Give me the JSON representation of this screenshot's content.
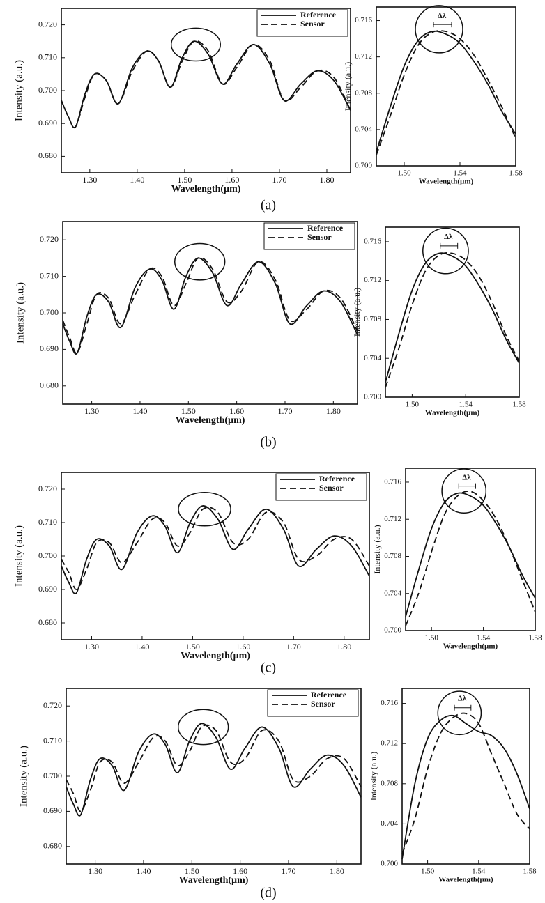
{
  "panel_labels": [
    "(a)",
    "(b)",
    "(c)",
    "(d)"
  ],
  "chart_data": [
    {
      "type": "line",
      "x_label": "Wavelength(µm)",
      "y_label": "Intensity (a.u.)",
      "legend": "upper right",
      "x": [
        1.24,
        1.255,
        1.27,
        1.29,
        1.31,
        1.335,
        1.36,
        1.39,
        1.42,
        1.445,
        1.47,
        1.495,
        1.52,
        1.55,
        1.58,
        1.61,
        1.645,
        1.68,
        1.71,
        1.745,
        1.78,
        1.815,
        1.85
      ],
      "series": [
        {
          "name": "Reference",
          "color": "#111111",
          "dash": false,
          "values": [
            0.697,
            0.692,
            0.689,
            0.699,
            0.705,
            0.703,
            0.696,
            0.707,
            0.712,
            0.709,
            0.701,
            0.71,
            0.715,
            0.711,
            0.702,
            0.708,
            0.714,
            0.708,
            0.697,
            0.702,
            0.706,
            0.703,
            0.694
          ]
        },
        {
          "name": "Sensor",
          "color": "#111111",
          "dash": true,
          "values": [
            0.697,
            0.692,
            0.689,
            0.698,
            0.705,
            0.703,
            0.696,
            0.706,
            0.712,
            0.709,
            0.701,
            0.709,
            0.715,
            0.712,
            0.702,
            0.707,
            0.714,
            0.709,
            0.697,
            0.701,
            0.706,
            0.704,
            0.694
          ]
        }
      ],
      "xlim": [
        1.24,
        1.85
      ],
      "ylim": [
        0.675,
        0.725
      ],
      "xticks": [
        {
          "value": 1.3,
          "label": "1.30"
        },
        {
          "value": 1.4,
          "label": "1.40"
        },
        {
          "value": 1.5,
          "label": "1.50"
        },
        {
          "value": 1.6,
          "label": "1.60"
        },
        {
          "value": 1.7,
          "label": "1.70"
        },
        {
          "value": 1.8,
          "label": "1.80"
        }
      ],
      "yticks": [
        {
          "value": 0.68,
          "label": "0.680"
        },
        {
          "value": 0.69,
          "label": "0.690"
        },
        {
          "value": 0.7,
          "label": "0.700"
        },
        {
          "value": 0.71,
          "label": "0.710"
        },
        {
          "value": 0.72,
          "label": "0.720"
        }
      ]
    },
    {
      "type": "line",
      "x_label": "Wavelength(µm)",
      "y_label": "Intensity (a.u.)",
      "annotation": "Δλ",
      "x": [
        1.48,
        1.49,
        1.5,
        1.51,
        1.52,
        1.53,
        1.54,
        1.55,
        1.56,
        1.57,
        1.58
      ],
      "series": [
        {
          "color": "#111111",
          "dash": false,
          "values": [
            0.7015,
            0.7065,
            0.711,
            0.7138,
            0.7148,
            0.7145,
            0.7135,
            0.7115,
            0.709,
            0.706,
            0.7035
          ]
        },
        {
          "color": "#111111",
          "dash": true,
          "values": [
            0.7012,
            0.7055,
            0.71,
            0.7133,
            0.7147,
            0.7148,
            0.714,
            0.7122,
            0.7095,
            0.7065,
            0.703
          ]
        }
      ],
      "xlim": [
        1.48,
        1.58
      ],
      "ylim": [
        0.7,
        0.7175
      ],
      "xticks": [
        {
          "value": 1.5,
          "label": "1.50"
        },
        1.54,
        1.58
      ],
      "yticks": [
        {
          "value": 0.7,
          "label": "0.700"
        },
        0.704,
        0.708,
        0.712,
        0.716
      ]
    },
    {
      "type": "line",
      "x_label": "Wavelength(µm)",
      "y_label": "Intensity (a.u.)",
      "legend": "upper right",
      "x": [
        1.24,
        1.255,
        1.27,
        1.29,
        1.31,
        1.335,
        1.36,
        1.39,
        1.42,
        1.445,
        1.47,
        1.495,
        1.52,
        1.55,
        1.58,
        1.61,
        1.645,
        1.68,
        1.71,
        1.745,
        1.78,
        1.815,
        1.85
      ],
      "series": [
        {
          "name": "Reference",
          "color": "#111111",
          "dash": false,
          "values": [
            0.697,
            0.692,
            0.689,
            0.699,
            0.705,
            0.703,
            0.696,
            0.707,
            0.712,
            0.709,
            0.701,
            0.71,
            0.715,
            0.711,
            0.702,
            0.708,
            0.714,
            0.708,
            0.697,
            0.702,
            0.706,
            0.703,
            0.694
          ]
        },
        {
          "name": "Sensor",
          "color": "#111111",
          "dash": true,
          "values": [
            0.698,
            0.693,
            0.689,
            0.697,
            0.705,
            0.704,
            0.697,
            0.705,
            0.712,
            0.71,
            0.702,
            0.708,
            0.715,
            0.712,
            0.703,
            0.706,
            0.714,
            0.709,
            0.698,
            0.701,
            0.706,
            0.704,
            0.695
          ]
        }
      ],
      "xlim": [
        1.24,
        1.85
      ],
      "ylim": [
        0.675,
        0.725
      ],
      "xticks": [
        {
          "value": 1.3,
          "label": "1.30"
        },
        {
          "value": 1.4,
          "label": "1.40"
        },
        {
          "value": 1.5,
          "label": "1.50"
        },
        {
          "value": 1.6,
          "label": "1.60"
        },
        {
          "value": 1.7,
          "label": "1.70"
        },
        {
          "value": 1.8,
          "label": "1.80"
        }
      ],
      "yticks": [
        {
          "value": 0.68,
          "label": "0.680"
        },
        {
          "value": 0.69,
          "label": "0.690"
        },
        {
          "value": 0.7,
          "label": "0.700"
        },
        {
          "value": 0.71,
          "label": "0.710"
        },
        {
          "value": 0.72,
          "label": "0.720"
        }
      ]
    },
    {
      "type": "line",
      "x_label": "Wavelength(µm)",
      "y_label": "Intensity (a.u.)",
      "annotation": "Δλ",
      "x": [
        1.48,
        1.49,
        1.5,
        1.51,
        1.52,
        1.53,
        1.54,
        1.55,
        1.56,
        1.57,
        1.58
      ],
      "series": [
        {
          "color": "#111111",
          "dash": false,
          "values": [
            0.7015,
            0.7065,
            0.711,
            0.7138,
            0.7148,
            0.7145,
            0.7135,
            0.7115,
            0.709,
            0.706,
            0.7035
          ]
        },
        {
          "color": "#111111",
          "dash": true,
          "values": [
            0.701,
            0.705,
            0.7095,
            0.713,
            0.7146,
            0.7148,
            0.7141,
            0.7124,
            0.7097,
            0.7064,
            0.7037
          ]
        }
      ],
      "xlim": [
        1.48,
        1.58
      ],
      "ylim": [
        0.7,
        0.7175
      ],
      "xticks": [
        {
          "value": 1.5,
          "label": "1.50"
        },
        1.54,
        1.58
      ],
      "yticks": [
        {
          "value": 0.7,
          "label": "0.700"
        },
        0.704,
        0.708,
        0.712,
        0.716
      ]
    },
    {
      "type": "line",
      "x_label": "Wavelength(µm)",
      "y_label": "Intensity (a.u.)",
      "legend": "upper right",
      "x": [
        1.24,
        1.255,
        1.27,
        1.29,
        1.31,
        1.335,
        1.36,
        1.39,
        1.42,
        1.445,
        1.47,
        1.495,
        1.52,
        1.55,
        1.58,
        1.61,
        1.645,
        1.68,
        1.71,
        1.745,
        1.78,
        1.815,
        1.85
      ],
      "series": [
        {
          "name": "Reference",
          "color": "#111111",
          "dash": false,
          "values": [
            0.697,
            0.692,
            0.689,
            0.699,
            0.705,
            0.703,
            0.696,
            0.707,
            0.712,
            0.709,
            0.701,
            0.71,
            0.715,
            0.711,
            0.702,
            0.708,
            0.714,
            0.708,
            0.697,
            0.702,
            0.706,
            0.703,
            0.694
          ]
        },
        {
          "name": "Sensor",
          "color": "#111111",
          "dash": true,
          "values": [
            0.699,
            0.695,
            0.69,
            0.696,
            0.704,
            0.704,
            0.698,
            0.704,
            0.711,
            0.71,
            0.703,
            0.707,
            0.714,
            0.713,
            0.704,
            0.705,
            0.713,
            0.71,
            0.699,
            0.7,
            0.705,
            0.705,
            0.697
          ]
        }
      ],
      "xlim": [
        1.24,
        1.85
      ],
      "ylim": [
        0.675,
        0.725
      ],
      "xticks": [
        {
          "value": 1.3,
          "label": "1.30"
        },
        {
          "value": 1.4,
          "label": "1.40"
        },
        {
          "value": 1.5,
          "label": "1.50"
        },
        {
          "value": 1.6,
          "label": "1.60"
        },
        {
          "value": 1.7,
          "label": "1.70"
        },
        {
          "value": 1.8,
          "label": "1.80"
        }
      ],
      "yticks": [
        {
          "value": 0.68,
          "label": "0.680"
        },
        {
          "value": 0.69,
          "label": "0.690"
        },
        {
          "value": 0.7,
          "label": "0.700"
        },
        {
          "value": 0.71,
          "label": "0.710"
        },
        {
          "value": 0.72,
          "label": "0.720"
        }
      ]
    },
    {
      "type": "line",
      "x_label": "Wavelength(µm)",
      "y_label": "Intensity (a.u.)",
      "annotation": "Δλ",
      "x": [
        1.48,
        1.49,
        1.5,
        1.51,
        1.52,
        1.53,
        1.54,
        1.55,
        1.56,
        1.57,
        1.58
      ],
      "series": [
        {
          "color": "#111111",
          "dash": false,
          "values": [
            0.7015,
            0.7065,
            0.711,
            0.7138,
            0.7148,
            0.7145,
            0.7135,
            0.7115,
            0.709,
            0.706,
            0.7035
          ]
        },
        {
          "color": "#111111",
          "dash": true,
          "values": [
            0.7005,
            0.704,
            0.7085,
            0.7125,
            0.7145,
            0.715,
            0.714,
            0.712,
            0.709,
            0.7055,
            0.702
          ]
        }
      ],
      "xlim": [
        1.48,
        1.58
      ],
      "ylim": [
        0.7,
        0.7175
      ],
      "xticks": [
        {
          "value": 1.5,
          "label": "1.50"
        },
        1.54,
        1.58
      ],
      "yticks": [
        {
          "value": 0.7,
          "label": "0.700"
        },
        0.704,
        0.708,
        0.712,
        0.716
      ]
    },
    {
      "type": "line",
      "x_label": "Wavelength(µm)",
      "y_label": "Intensity (a.u.)",
      "legend": "upper right",
      "x": [
        1.24,
        1.255,
        1.27,
        1.29,
        1.31,
        1.335,
        1.36,
        1.39,
        1.42,
        1.445,
        1.47,
        1.495,
        1.52,
        1.55,
        1.58,
        1.61,
        1.645,
        1.68,
        1.71,
        1.745,
        1.78,
        1.815,
        1.85
      ],
      "series": [
        {
          "name": "Reference",
          "color": "#111111",
          "dash": false,
          "values": [
            0.697,
            0.692,
            0.689,
            0.699,
            0.705,
            0.703,
            0.696,
            0.707,
            0.712,
            0.709,
            0.701,
            0.71,
            0.715,
            0.711,
            0.702,
            0.708,
            0.714,
            0.708,
            0.697,
            0.702,
            0.706,
            0.703,
            0.694
          ]
        },
        {
          "name": "Sensor",
          "color": "#111111",
          "dash": true,
          "values": [
            0.699,
            0.695,
            0.69,
            0.696,
            0.704,
            0.704,
            0.698,
            0.704,
            0.711,
            0.71,
            0.703,
            0.707,
            0.714,
            0.713,
            0.704,
            0.705,
            0.713,
            0.71,
            0.699,
            0.7,
            0.705,
            0.705,
            0.697
          ]
        }
      ],
      "xlim": [
        1.24,
        1.85
      ],
      "ylim": [
        0.675,
        0.725
      ],
      "xticks": [
        {
          "value": 1.3,
          "label": "1.30"
        },
        {
          "value": 1.4,
          "label": "1.40"
        },
        {
          "value": 1.5,
          "label": "1.50"
        },
        {
          "value": 1.6,
          "label": "1.60"
        },
        {
          "value": 1.7,
          "label": "1.70"
        },
        {
          "value": 1.8,
          "label": "1.80"
        }
      ],
      "yticks": [
        {
          "value": 0.68,
          "label": "0.680"
        },
        {
          "value": 0.69,
          "label": "0.690"
        },
        {
          "value": 0.7,
          "label": "0.700"
        },
        {
          "value": 0.71,
          "label": "0.710"
        },
        {
          "value": 0.72,
          "label": "0.720"
        }
      ]
    },
    {
      "type": "line",
      "x_label": "Wavelength(µm)",
      "y_label": "Intensity (a.u.)",
      "annotation": "Δλ",
      "x": [
        1.48,
        1.49,
        1.5,
        1.51,
        1.52,
        1.53,
        1.54,
        1.55,
        1.56,
        1.57,
        1.58
      ],
      "series": [
        {
          "color": "#111111",
          "dash": false,
          "values": [
            0.7005,
            0.708,
            0.7125,
            0.7143,
            0.7148,
            0.714,
            0.7132,
            0.7128,
            0.7115,
            0.709,
            0.7055
          ]
        },
        {
          "color": "#111111",
          "dash": true,
          "values": [
            0.701,
            0.7045,
            0.7095,
            0.713,
            0.7146,
            0.715,
            0.714,
            0.711,
            0.708,
            0.705,
            0.7035
          ]
        }
      ],
      "xlim": [
        1.48,
        1.58
      ],
      "ylim": [
        0.7,
        0.7175
      ],
      "xticks": [
        {
          "value": 1.5,
          "label": "1.50"
        },
        1.54,
        1.58
      ],
      "yticks": [
        {
          "value": 0.7,
          "label": "0.700"
        },
        0.704,
        0.708,
        0.712,
        0.716
      ]
    }
  ]
}
